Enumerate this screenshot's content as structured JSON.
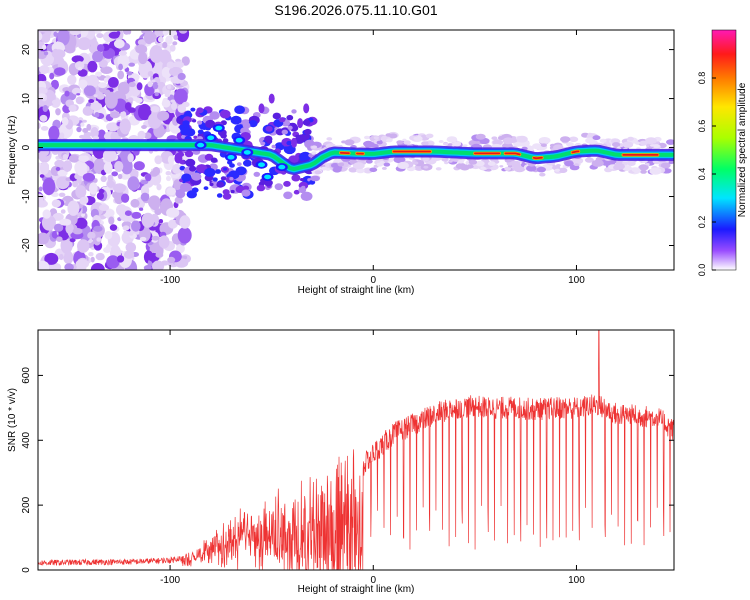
{
  "title": "S196.2026.075.11.10.G01",
  "colors": {
    "snr_line": "#ee3333",
    "axis": "#000000"
  },
  "chart_data": [
    {
      "type": "heatmap",
      "xlabel": "Height of straight line (km)",
      "ylabel": "Frequency (Hz)",
      "xlim": [
        -165,
        148
      ],
      "ylim": [
        -25,
        24
      ],
      "xticks": [
        -100,
        0,
        100
      ],
      "yticks": [
        -20,
        -10,
        0,
        10,
        20
      ],
      "ridge": [
        [
          -93,
          0.5
        ],
        [
          -80,
          0.5
        ],
        [
          -65,
          -0.5
        ],
        [
          -50,
          -1.5
        ],
        [
          -40,
          -4.5
        ],
        [
          -30,
          -3.5
        ],
        [
          -25,
          -2.0
        ],
        [
          -20,
          -1.0
        ],
        [
          -10,
          -1.2
        ],
        [
          0,
          -1.3
        ],
        [
          10,
          -0.8
        ],
        [
          30,
          -0.8
        ],
        [
          50,
          -1.2
        ],
        [
          70,
          -1.2
        ],
        [
          80,
          -2.2
        ],
        [
          90,
          -1.8
        ],
        [
          100,
          -0.8
        ],
        [
          110,
          -0.6
        ],
        [
          120,
          -1.5
        ],
        [
          148,
          -1.5
        ]
      ],
      "colorbar": {
        "label": "Normalized spectral amplitude",
        "range": [
          0.0,
          1.0
        ],
        "ticks": [
          0.0,
          0.2,
          0.4,
          0.6,
          0.8
        ]
      }
    },
    {
      "type": "line",
      "xlabel": "Height of straight line (km)",
      "ylabel": "SNR (10 * v/v)",
      "xlim": [
        -165,
        148
      ],
      "ylim": [
        0,
        740
      ],
      "xticks": [
        -100,
        0,
        100
      ],
      "yticks": [
        0,
        200,
        400,
        600
      ],
      "series": [
        {
          "name": "SNR",
          "x": [
            -165,
            -140,
            -120,
            -100,
            -90,
            -80,
            -70,
            -60,
            -50,
            -40,
            -30,
            -20,
            -10,
            -5,
            0,
            10,
            20,
            30,
            40,
            50,
            60,
            70,
            80,
            90,
            100,
            110,
            120,
            130,
            140,
            148
          ],
          "values": [
            22,
            24,
            25,
            30,
            45,
            90,
            130,
            170,
            190,
            210,
            260,
            280,
            300,
            320,
            360,
            420,
            450,
            480,
            500,
            505,
            500,
            500,
            495,
            500,
            500,
            510,
            480,
            475,
            470,
            430
          ],
          "spike": {
            "x": 111,
            "value": 740
          }
        }
      ]
    }
  ]
}
